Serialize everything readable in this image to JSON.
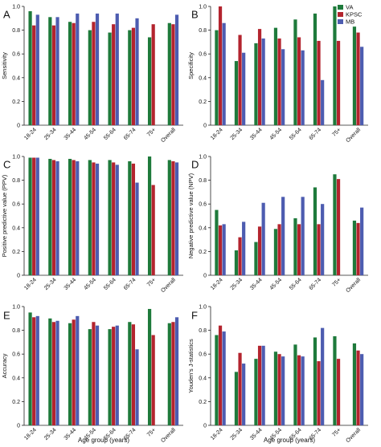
{
  "colors": {
    "VA": "#1e7a3b",
    "KPSC": "#b3242e",
    "MB": "#4d5cb0"
  },
  "legend": [
    "VA",
    "KPSC",
    "MB"
  ],
  "categories": [
    "18-24",
    "25-34",
    "35-44",
    "45-54",
    "55-64",
    "65-74",
    "75+",
    "Overall"
  ],
  "xlabel": "Age group (years)",
  "chart_data": [
    {
      "type": "bar",
      "letter": "A",
      "ylabel": "Sensitivity",
      "ylim": [
        0,
        1
      ],
      "yticks": [
        "0",
        "0.2",
        "0.4",
        "0.6",
        "0.8",
        "1.0"
      ],
      "grid": false,
      "categories": [
        "18-24",
        "25-34",
        "35-44",
        "45-54",
        "55-64",
        "65-74",
        "75+",
        "Overall"
      ],
      "series": [
        {
          "name": "VA",
          "values": [
            0.96,
            0.91,
            0.87,
            0.8,
            0.78,
            0.8,
            0.74,
            0.86
          ]
        },
        {
          "name": "KPSC",
          "values": [
            0.84,
            0.84,
            0.86,
            0.87,
            0.85,
            0.82,
            0.85,
            0.85
          ]
        },
        {
          "name": "MB",
          "values": [
            0.93,
            0.91,
            0.94,
            0.94,
            0.94,
            0.9,
            null,
            0.93
          ]
        }
      ]
    },
    {
      "type": "bar",
      "letter": "B",
      "ylabel": "Specificity",
      "ylim": [
        0,
        1
      ],
      "yticks": [
        "0",
        "0.2",
        "0.4",
        "0.6",
        "0.8",
        "1.0"
      ],
      "grid": false,
      "categories": [
        "18-24",
        "25-34",
        "35-44",
        "45-54",
        "55-64",
        "65-74",
        "75+",
        "Overall"
      ],
      "series": [
        {
          "name": "VA",
          "values": [
            0.8,
            0.54,
            0.69,
            0.82,
            0.89,
            0.94,
            1.0,
            0.83
          ]
        },
        {
          "name": "KPSC",
          "values": [
            1.0,
            0.76,
            0.81,
            0.73,
            0.74,
            0.71,
            0.71,
            0.78
          ]
        },
        {
          "name": "MB",
          "values": [
            0.86,
            0.61,
            0.73,
            0.64,
            0.63,
            0.38,
            null,
            0.66
          ]
        }
      ]
    },
    {
      "type": "bar",
      "letter": "C",
      "ylabel": "Positive predictive value (PPV)",
      "ylim": [
        0,
        1
      ],
      "yticks": [
        "0",
        "0.2",
        "0.4",
        "0.6",
        "0.8",
        "1.0"
      ],
      "grid": false,
      "categories": [
        "18-24",
        "25-34",
        "35-44",
        "45-54",
        "55-64",
        "65-74",
        "75+",
        "Overall"
      ],
      "series": [
        {
          "name": "VA",
          "values": [
            0.99,
            0.98,
            0.98,
            0.97,
            0.97,
            0.96,
            1.0,
            0.97
          ]
        },
        {
          "name": "KPSC",
          "values": [
            0.99,
            0.97,
            0.97,
            0.95,
            0.95,
            0.94,
            0.76,
            0.96
          ]
        },
        {
          "name": "MB",
          "values": [
            0.99,
            0.96,
            0.96,
            0.94,
            0.93,
            0.78,
            null,
            0.95
          ]
        }
      ]
    },
    {
      "type": "bar",
      "letter": "D",
      "ylabel": "Negative predictive value (NPV)",
      "ylim": [
        0,
        1
      ],
      "yticks": [
        "0",
        "0.2",
        "0.4",
        "0.6",
        "0.8",
        "1.0"
      ],
      "grid": false,
      "categories": [
        "18-24",
        "25-34",
        "35-44",
        "45-54",
        "55-64",
        "65-74",
        "75+",
        "Overall"
      ],
      "series": [
        {
          "name": "VA",
          "values": [
            0.55,
            0.21,
            0.28,
            0.39,
            0.48,
            0.74,
            0.85,
            0.46
          ]
        },
        {
          "name": "KPSC",
          "values": [
            0.42,
            0.32,
            0.41,
            0.43,
            0.43,
            0.43,
            0.81,
            0.44
          ]
        },
        {
          "name": "MB",
          "values": [
            0.43,
            0.45,
            0.61,
            0.66,
            0.66,
            0.6,
            null,
            0.57
          ]
        }
      ]
    },
    {
      "type": "bar",
      "letter": "E",
      "ylabel": "Accuracy",
      "ylim": [
        0,
        1
      ],
      "yticks": [
        "0",
        "0.2",
        "0.4",
        "0.6",
        "0.8",
        "1.0"
      ],
      "grid": false,
      "categories": [
        "18-24",
        "25-34",
        "35-44",
        "45-54",
        "55-64",
        "65-74",
        "75+",
        "Overall"
      ],
      "series": [
        {
          "name": "VA",
          "values": [
            0.95,
            0.9,
            0.86,
            0.81,
            0.81,
            0.87,
            0.98,
            0.86
          ]
        },
        {
          "name": "KPSC",
          "values": [
            0.91,
            0.87,
            0.89,
            0.87,
            0.83,
            0.85,
            0.76,
            0.87
          ]
        },
        {
          "name": "MB",
          "values": [
            0.92,
            0.88,
            0.92,
            0.84,
            0.84,
            0.64,
            null,
            0.91
          ]
        }
      ]
    },
    {
      "type": "bar",
      "letter": "F",
      "ylabel": "Youden's J-statistics",
      "ylim": [
        0,
        1
      ],
      "yticks": [
        "0",
        "0.2",
        "0.4",
        "0.6",
        "0.8",
        "1.0"
      ],
      "grid": false,
      "categories": [
        "18-24",
        "25-34",
        "35-44",
        "45-54",
        "55-64",
        "65-74",
        "75+",
        "Overall"
      ],
      "series": [
        {
          "name": "VA",
          "values": [
            0.76,
            0.45,
            0.56,
            0.62,
            0.68,
            0.74,
            0.75,
            0.69
          ]
        },
        {
          "name": "KPSC",
          "values": [
            0.84,
            0.61,
            0.67,
            0.6,
            0.59,
            0.54,
            0.56,
            0.63
          ]
        },
        {
          "name": "MB",
          "values": [
            0.79,
            0.52,
            0.67,
            0.58,
            0.58,
            0.82,
            null,
            0.6
          ]
        }
      ]
    }
  ]
}
